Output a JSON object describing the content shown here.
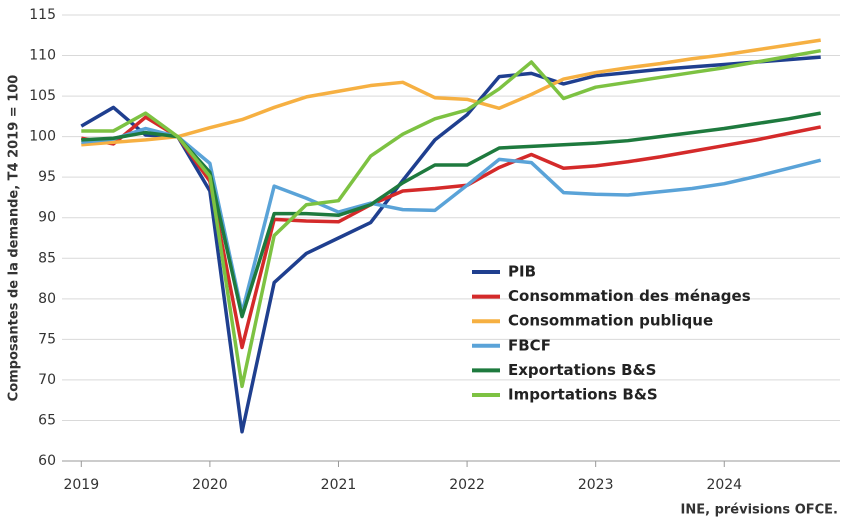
{
  "chart_data": {
    "type": "line",
    "y_label": "Composantes de la demande, T4 2019 = 100",
    "source": "INE, prévisions OFCE.",
    "x": [
      2019,
      2019.25,
      2019.5,
      2019.75,
      2020,
      2020.25,
      2020.5,
      2020.75,
      2021,
      2021.25,
      2021.5,
      2021.75,
      2022,
      2022.25,
      2022.5,
      2022.75,
      2023,
      2023.25,
      2023.5,
      2023.75,
      2024,
      2024.25,
      2024.5,
      2024.75
    ],
    "xlim": [
      2018.85,
      2024.9
    ],
    "xticks": [
      2019,
      2020,
      2021,
      2022,
      2023,
      2024
    ],
    "ylim": [
      60,
      115
    ],
    "yticks": [
      60,
      65,
      70,
      75,
      80,
      85,
      90,
      95,
      100,
      105,
      110,
      115
    ],
    "grid": true,
    "series": [
      {
        "name": "PIB",
        "color": "#1f3f8f",
        "values": [
          101.3,
          103.6,
          100.2,
          100.0,
          93.3,
          63.6,
          82.0,
          85.6,
          87.5,
          89.4,
          94.6,
          99.6,
          102.7,
          107.4,
          107.8,
          106.5,
          107.5,
          107.9,
          108.3,
          108.6,
          108.9,
          109.2,
          109.5,
          109.8
        ]
      },
      {
        "name": "Consommation des ménages",
        "color": "#d42a2a",
        "values": [
          99.8,
          99.1,
          102.4,
          100.0,
          94.5,
          74.0,
          89.8,
          89.6,
          89.5,
          91.6,
          93.3,
          93.6,
          94.0,
          96.2,
          97.8,
          96.1,
          96.4,
          96.9,
          97.5,
          98.2,
          98.9,
          99.6,
          100.4,
          101.2
        ]
      },
      {
        "name": "Consommation publique",
        "color": "#f6b042",
        "values": [
          99.0,
          99.3,
          99.6,
          100.0,
          101.1,
          102.1,
          103.6,
          104.9,
          105.6,
          106.3,
          106.7,
          104.8,
          104.6,
          103.5,
          105.2,
          107.1,
          107.9,
          108.5,
          109.0,
          109.6,
          110.1,
          110.7,
          111.3,
          111.9
        ]
      },
      {
        "name": "FBCF",
        "color": "#5aa3d8",
        "values": [
          99.3,
          99.7,
          101.0,
          100.0,
          96.7,
          78.3,
          93.9,
          92.4,
          90.7,
          91.8,
          91.0,
          90.9,
          94.0,
          97.2,
          96.8,
          93.1,
          92.9,
          92.8,
          93.2,
          93.6,
          94.2,
          95.1,
          96.1,
          97.1
        ]
      },
      {
        "name": "Exportations B&S",
        "color": "#1e7a3e",
        "values": [
          99.6,
          99.8,
          100.5,
          100.0,
          95.6,
          77.8,
          90.5,
          90.5,
          90.3,
          91.6,
          94.3,
          96.5,
          96.5,
          98.6,
          98.8,
          99.0,
          99.2,
          99.5,
          100.0,
          100.5,
          101.0,
          101.6,
          102.2,
          102.9
        ]
      },
      {
        "name": "Importations B&S",
        "color": "#7dc242",
        "values": [
          100.7,
          100.7,
          102.9,
          100.0,
          95.1,
          69.2,
          87.8,
          91.6,
          92.1,
          97.6,
          100.3,
          102.2,
          103.3,
          105.9,
          109.2,
          104.7,
          106.1,
          106.7,
          107.3,
          107.9,
          108.5,
          109.2,
          109.9,
          110.6
        ]
      }
    ]
  }
}
